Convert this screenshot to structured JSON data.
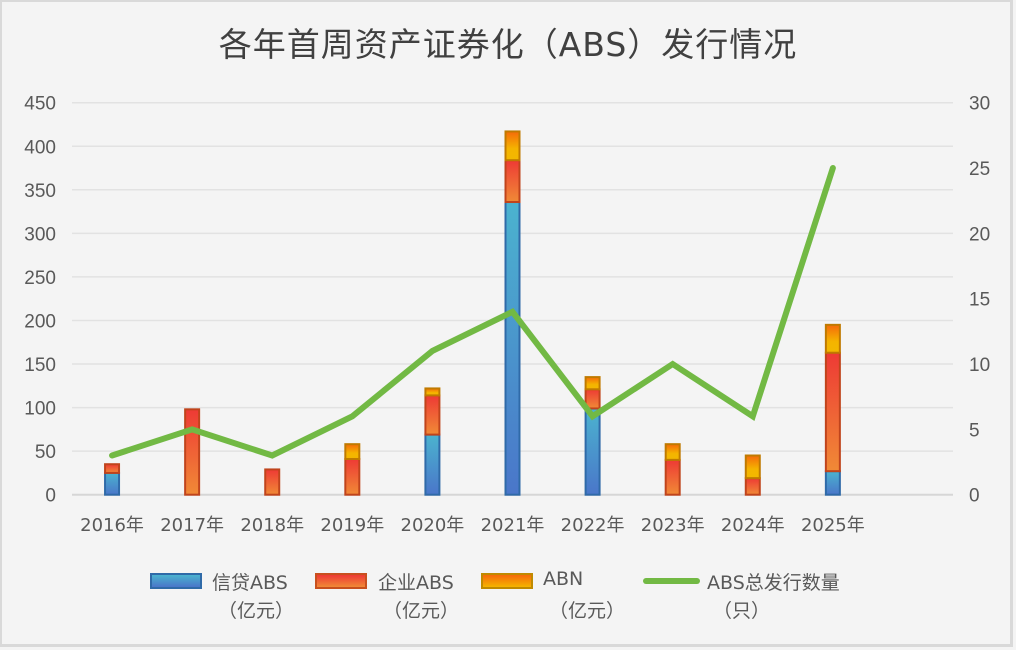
{
  "title": "各年首周资产证券化（ABS）发行情况",
  "colors": {
    "background": "#f4f4f4",
    "credit_abs": "#4aa8cc",
    "corporate_abs": "#ee4a33",
    "abn": "#f5b400",
    "line": "#72b944",
    "grid": "#e2e2e2",
    "text": "#595959"
  },
  "legend": {
    "items": [
      {
        "label": "信贷ABS",
        "unit": "（亿元）"
      },
      {
        "label": "企业ABS",
        "unit": "（亿元）"
      },
      {
        "label": "ABN",
        "unit": "（亿元）"
      },
      {
        "label": "ABS总发行数量",
        "unit": "（只）"
      }
    ]
  },
  "chart_data": {
    "type": "bar",
    "subtype": "stacked bar + line (dual axis)",
    "title": "各年首周资产证券化（ABS）发行情况",
    "categories": [
      "2016年",
      "2017年",
      "2018年",
      "2019年",
      "2020年",
      "2021年",
      "2022年",
      "2023年",
      "2024年",
      "2025年"
    ],
    "series": [
      {
        "name": "信贷ABS（亿元）",
        "type": "bar",
        "axis": "left",
        "values": [
          25,
          0,
          0,
          0,
          69,
          336,
          99,
          0,
          0,
          27
        ]
      },
      {
        "name": "企业ABS（亿元）",
        "type": "bar",
        "axis": "left",
        "values": [
          10,
          98,
          29,
          41,
          45,
          48,
          22,
          40,
          19,
          136
        ]
      },
      {
        "name": "ABN（亿元）",
        "type": "bar",
        "axis": "left",
        "values": [
          0,
          0,
          0,
          17,
          8,
          33,
          14,
          18,
          26,
          32
        ]
      },
      {
        "name": "ABS总发行数量（只）",
        "type": "line",
        "axis": "right",
        "values": [
          3,
          5,
          3,
          6,
          11,
          14,
          6,
          10,
          6,
          25
        ]
      }
    ],
    "y_left": {
      "min": 0,
      "max": 450,
      "step": 50,
      "ticks": [
        "0",
        "50",
        "100",
        "150",
        "200",
        "250",
        "300",
        "350",
        "400",
        "450"
      ]
    },
    "y_right": {
      "min": 0,
      "max": 30,
      "step": 5,
      "ticks": [
        "0",
        "5",
        "10",
        "15",
        "20",
        "25",
        "30"
      ]
    },
    "xlabel": "",
    "ylabel": "",
    "grid": true,
    "legend_position": "bottom"
  }
}
